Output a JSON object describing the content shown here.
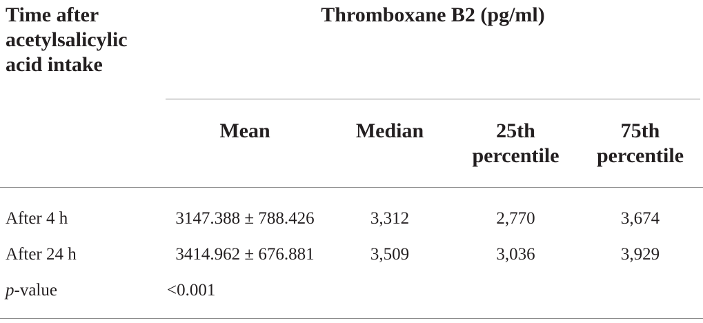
{
  "table": {
    "header": {
      "time_col": [
        "Time after",
        "acetylsalicylic",
        "acid intake"
      ],
      "group_label": "Thromboxane B2 (pg/ml)",
      "columns": [
        [
          "Mean"
        ],
        [
          "Median"
        ],
        [
          "25th",
          "percentile"
        ],
        [
          "75th",
          "percentile"
        ]
      ]
    },
    "rows": [
      {
        "label": "After 4 h",
        "mean": "3147.388 ± 788.426",
        "median": "3,312",
        "p25": "2,770",
        "p75": "3,674"
      },
      {
        "label": "After 24 h",
        "mean": "3414.962 ± 676.881",
        "median": "3,509",
        "p25": "3,036",
        "p75": "3,929"
      }
    ],
    "pvalue": {
      "label_italic": "p",
      "label_rest": "-value",
      "value": "<0.001"
    }
  }
}
